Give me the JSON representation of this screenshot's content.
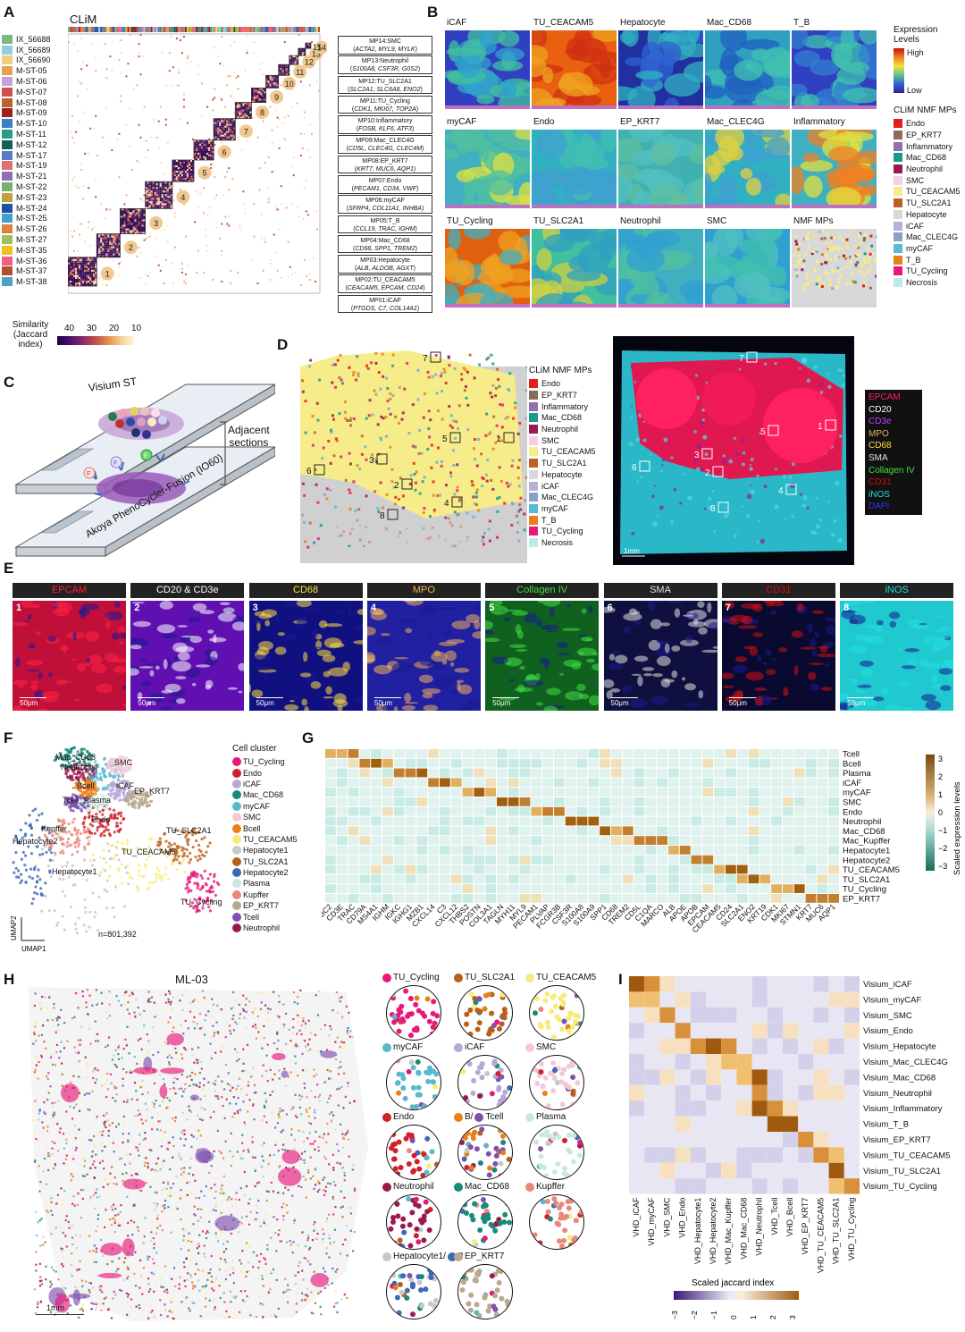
{
  "panels": {
    "A": "A",
    "B": "B",
    "C": "C",
    "D": "D",
    "E": "E",
    "F": "F",
    "G": "G",
    "H": "H",
    "I": "I"
  },
  "panelA": {
    "title": "CLiM",
    "samples": [
      {
        "name": "IX_56688",
        "color": "#7fb77e"
      },
      {
        "name": "IX_56689",
        "color": "#8ecfe0"
      },
      {
        "name": "IX_56690",
        "color": "#f0d080"
      },
      {
        "name": "M-ST-05",
        "color": "#e8a04a"
      },
      {
        "name": "M-ST-06",
        "color": "#c8a0d8"
      },
      {
        "name": "M-ST-07",
        "color": "#d05050"
      },
      {
        "name": "M-ST-08",
        "color": "#c06030"
      },
      {
        "name": "M-ST-09",
        "color": "#a02020"
      },
      {
        "name": "M-ST-10",
        "color": "#3a7fc0"
      },
      {
        "name": "M-ST-11",
        "color": "#2a9a8a"
      },
      {
        "name": "M-ST-12",
        "color": "#106050"
      },
      {
        "name": "M-ST-17",
        "color": "#5a7ac8"
      },
      {
        "name": "M-ST-19",
        "color": "#e07070"
      },
      {
        "name": "M-ST-21",
        "color": "#9070b0"
      },
      {
        "name": "M-ST-22",
        "color": "#78b070"
      },
      {
        "name": "M-ST-23",
        "color": "#c0a040"
      },
      {
        "name": "M-ST-24",
        "color": "#2050a0"
      },
      {
        "name": "M-ST-25",
        "color": "#40a0d0"
      },
      {
        "name": "M-ST-26",
        "color": "#e08040"
      },
      {
        "name": "M-ST-27",
        "color": "#a0c060"
      },
      {
        "name": "M-ST-35",
        "color": "#f0c020"
      },
      {
        "name": "M-ST-36",
        "color": "#f06080"
      },
      {
        "name": "M-ST-37",
        "color": "#b05030"
      },
      {
        "name": "M-ST-38",
        "color": "#50a0c0"
      }
    ],
    "modules": [
      "1",
      "2",
      "3",
      "4",
      "5",
      "6",
      "7",
      "8",
      "9",
      "10",
      "11",
      "12",
      "13",
      "14"
    ],
    "module_extra": "15",
    "similarity_label": "Similarity\n(Jaccard\nindex)",
    "similarity_ticks": [
      "40",
      "30",
      "20",
      "10"
    ],
    "mp_boxes": [
      {
        "title": "MP14:SMC",
        "genes": "ACTA2, MYL9, MYLK"
      },
      {
        "title": "MP13:Neutrophil",
        "genes": "S100A8, CSF3R, G0S2"
      },
      {
        "title": "MP12:TU_SLC2A1",
        "genes": "SLC2A1, SLC6A8, ENO2"
      },
      {
        "title": "MP11:TU_Cycling",
        "genes": "CDK1, MKI67, TOP2A"
      },
      {
        "title": "MP10:Inflammatory",
        "genes": "FOSB, KLF6, ATF3"
      },
      {
        "title": "MP09:Mac_CLEC4G",
        "genes": "CD5L, CLEC4G, CLEC4M"
      },
      {
        "title": "MP08:EP_KRT7",
        "genes": "KRT7, MUC6, AQP1"
      },
      {
        "title": "MP07:Endo",
        "genes": "PECAM1, CD34, VWF"
      },
      {
        "title": "MP06:myCAF",
        "genes": "SFRP4, COL11A1, INHBA"
      },
      {
        "title": "MP05:T_B",
        "genes": "CCL19, TRAC, IGHM"
      },
      {
        "title": "MP04:Mac_CD68",
        "genes": "CD68, SPP1, TREM2"
      },
      {
        "title": "MP03:Hepatocyte",
        "genes": "ALB, ALDOB, AGXT"
      },
      {
        "title": "MP02:TU_CEACAM5",
        "genes": "CEACAM5, EPCAM, CD24"
      },
      {
        "title": "MP01:iCAF",
        "genes": "PTGDS, C7, COL14A1"
      }
    ]
  },
  "panelB": {
    "tiles": [
      "iCAF",
      "TU_CEACAM5",
      "Hepatocyte",
      "Mac_CD68",
      "T_B",
      "myCAF",
      "Endo",
      "EP_KRT7",
      "Mac_CLEC4G",
      "Inflammatory",
      "TU_Cycling",
      "TU_SLC2A1",
      "Neutrophil",
      "SMC",
      "NMF MPs"
    ],
    "expr_title": "Expression\nLevels",
    "expr_high": "High",
    "expr_low": "Low",
    "nmf_title": "CLiM NMF MPs",
    "nmf_legend": [
      {
        "name": "Endo",
        "color": "#e0201a"
      },
      {
        "name": "EP_KRT7",
        "color": "#8a6a5a"
      },
      {
        "name": "Inflammatory",
        "color": "#9070b0"
      },
      {
        "name": "Mac_CD68",
        "color": "#1a9a8a"
      },
      {
        "name": "Neutrophil",
        "color": "#9a1a50"
      },
      {
        "name": "SMC",
        "color": "#f6cfe0"
      },
      {
        "name": "TU_CEACAM5",
        "color": "#f6ec8a"
      },
      {
        "name": "TU_SLC2A1",
        "color": "#c06020"
      },
      {
        "name": "Hepatocyte",
        "color": "#d8d8d8"
      },
      {
        "name": "iCAF",
        "color": "#b8b0d8"
      },
      {
        "name": "Mac_CLEC4G",
        "color": "#8aa0c8"
      },
      {
        "name": "myCAF",
        "color": "#5ab8d8"
      },
      {
        "name": "T_B",
        "color": "#e8801a"
      },
      {
        "name": "TU_Cycling",
        "color": "#e8187a"
      },
      {
        "name": "Necrosis",
        "color": "#bfe8e8"
      }
    ]
  },
  "panelC": {
    "top": "Visium ST",
    "bottom": "Akoya PhenoCycler-Fusion (IO60)",
    "adjacent": "Adjacent\nsections",
    "badges": [
      "F",
      "F",
      "F"
    ]
  },
  "panelD": {
    "legend_title": "CLiM NMF MPs",
    "legend": [
      {
        "name": "Endo",
        "color": "#e0201a"
      },
      {
        "name": "EP_KRT7",
        "color": "#8a6a5a"
      },
      {
        "name": "Inflammatory",
        "color": "#9070b0"
      },
      {
        "name": "Mac_CD68",
        "color": "#1a9a8a"
      },
      {
        "name": "Neutrophil",
        "color": "#9a1a50"
      },
      {
        "name": "SMC",
        "color": "#f6cfe0"
      },
      {
        "name": "TU_CEACAM5",
        "color": "#f6ec8a"
      },
      {
        "name": "TU_SLC2A1",
        "color": "#c06020"
      },
      {
        "name": "Hepatocyte",
        "color": "#d8d8d8"
      },
      {
        "name": "iCAF",
        "color": "#b8b0d8"
      },
      {
        "name": "Mac_CLEC4G",
        "color": "#8aa0c8"
      },
      {
        "name": "myCAF",
        "color": "#5ab8d8"
      },
      {
        "name": "T_B",
        "color": "#e8801a"
      },
      {
        "name": "TU_Cycling",
        "color": "#e8187a"
      },
      {
        "name": "Necrosis",
        "color": "#bfe8e8"
      }
    ],
    "roi_numbers": [
      "1",
      "2",
      "3",
      "4",
      "5",
      "6",
      "7",
      "8"
    ],
    "markers": [
      {
        "name": "EPCAM",
        "color": "#ff2060"
      },
      {
        "name": "CD20",
        "color": "#ffffff"
      },
      {
        "name": "CD3e",
        "color": "#c040ff"
      },
      {
        "name": "MPO",
        "color": "#f0b060"
      },
      {
        "name": "CD68",
        "color": "#ffe040"
      },
      {
        "name": "SMA",
        "color": "#e0e0e0"
      },
      {
        "name": "Collagen IV",
        "color": "#40e040"
      },
      {
        "name": "CD31",
        "color": "#d01010"
      },
      {
        "name": "iNOS",
        "color": "#20e0e0"
      },
      {
        "name": "DAPI",
        "color": "#3030ff"
      }
    ],
    "scale": "1mm"
  },
  "panelE": {
    "tiles": [
      {
        "label": "EPCAM",
        "num": "1",
        "color": "#ff2040",
        "bg": "#c0103a"
      },
      {
        "label": "CD20 & CD3e",
        "num": "2",
        "color": "#ffffff",
        "bg": "#6010b0"
      },
      {
        "label": "CD68",
        "num": "3",
        "color": "#ffe040",
        "bg": "#101080"
      },
      {
        "label": "MPO",
        "num": "4",
        "color": "#f0b060",
        "bg": "#2020a0"
      },
      {
        "label": "Collagen IV",
        "num": "5",
        "color": "#40e040",
        "bg": "#106020"
      },
      {
        "label": "SMA",
        "num": "6",
        "color": "#e0e0e0",
        "bg": "#101040"
      },
      {
        "label": "CD31",
        "num": "7",
        "color": "#d01010",
        "bg": "#0a0a30"
      },
      {
        "label": "iNOS",
        "num": "8",
        "color": "#20e0e0",
        "bg": "#20c8d0"
      }
    ],
    "scale": "50μm"
  },
  "panelF": {
    "title": "Cell cluster",
    "clusters": [
      {
        "name": "TU_Cycling",
        "color": "#e8187a"
      },
      {
        "name": "Endo",
        "color": "#d0202a"
      },
      {
        "name": "iCAF",
        "color": "#b8a8d8"
      },
      {
        "name": "Mac_CD68",
        "color": "#1a8a78"
      },
      {
        "name": "myCAF",
        "color": "#58b8d0"
      },
      {
        "name": "SMC",
        "color": "#f4c8d8"
      },
      {
        "name": "Bcell",
        "color": "#e8801a"
      },
      {
        "name": "TU_CEACAM5",
        "color": "#f6ec7a"
      },
      {
        "name": "Hepatocyte1",
        "color": "#c8c8c8"
      },
      {
        "name": "TU_SLC2A1",
        "color": "#b8601a"
      },
      {
        "name": "Hepatocyte2",
        "color": "#3a6ab8"
      },
      {
        "name": "Plasma",
        "color": "#c8e8e0"
      },
      {
        "name": "Kupffer",
        "color": "#e88878"
      },
      {
        "name": "EP_KRT7",
        "color": "#b8a890"
      },
      {
        "name": "Tcell",
        "color": "#8050b0"
      },
      {
        "name": "Neutrophil",
        "color": "#9a1a50"
      }
    ],
    "umap_labels": [
      "Mac_CD68",
      "Neutrophil",
      "SMC",
      "iCAF",
      "Bcell",
      "EP_KRT7",
      "Tcell",
      "Plasma",
      "Endo",
      "Kupffer",
      "TU_SLC2A1",
      "Hepatocyte2",
      "TU_CEACAM5",
      "Hepatocyte1",
      "TU_Cycling"
    ],
    "n": "n=801,392",
    "xlabel": "UMAP1",
    "ylabel": "UMAP2"
  },
  "panelG": {
    "rows": [
      "Tcell",
      "Bcell",
      "Plasma",
      "iCAF",
      "myCAF",
      "SMC",
      "Endo",
      "Neutrophil",
      "Mac_CD68",
      "Mac_Kupffer",
      "Hepatocyte1",
      "Hepatocyte2",
      "TU_CEACAM5",
      "TU_SLC2A1",
      "TU_Cycling",
      "EP_KRT7"
    ],
    "cols": [
      "TRBC2",
      "CD3E",
      "TRAC",
      "CD79A",
      "MS4A1",
      "IGHM",
      "IGKC",
      "IGHG1",
      "MZB1",
      "CXCL14",
      "C3",
      "CXCL12",
      "THBS2",
      "POSTN",
      "COL3A1",
      "TAGLN",
      "MYH11",
      "MYL9",
      "PECAM1",
      "PLVAP",
      "FCGR3B",
      "CSF3R",
      "S100A8",
      "S100A9",
      "SPP1",
      "CD68",
      "TREM2",
      "CD5L",
      "C1QA",
      "MARCO",
      "ALB",
      "APOE",
      "APOB",
      "EPCAM",
      "CEACAM5",
      "CD24",
      "SLC2A1",
      "ENO2",
      "KRT19",
      "CDK1",
      "MKI67",
      "STMN1",
      "KRT7",
      "MUC6",
      "AQP1"
    ],
    "legend_title": "Scaled expression levels",
    "legend_ticks": [
      "3",
      "2",
      "1",
      "0",
      "−1",
      "−2",
      "−3"
    ]
  },
  "panelH": {
    "title": "ML-03",
    "scale": "1mm",
    "circles": [
      {
        "label": "TU_Cycling",
        "colors": [
          "#e8187a"
        ]
      },
      {
        "label": "TU_SLC2A1",
        "colors": [
          "#b8601a"
        ]
      },
      {
        "label": "TU_CEACAM5",
        "colors": [
          "#f6ec7a"
        ]
      },
      {
        "label": "myCAF",
        "colors": [
          "#58b8d0"
        ]
      },
      {
        "label": "iCAF",
        "colors": [
          "#b8a8d8"
        ]
      },
      {
        "label": "SMC",
        "colors": [
          "#f4c8d8"
        ]
      },
      {
        "label": "Endo",
        "colors": [
          "#d0202a"
        ]
      },
      {
        "label": "B/",
        "colors": [
          "#e8801a",
          "#8050b0"
        ],
        "label2": "Tcell"
      },
      {
        "label": "Plasma",
        "colors": [
          "#c8e8e0"
        ]
      },
      {
        "label": "Neutrophil",
        "colors": [
          "#9a1a50"
        ]
      },
      {
        "label": "Mac_CD68",
        "colors": [
          "#1a8a78"
        ]
      },
      {
        "label": "Kupffer",
        "colors": [
          "#e88878"
        ]
      },
      {
        "label": "Hepatocyte1/",
        "colors": [
          "#c8c8c8",
          "#3a6ab8"
        ],
        "label2": "2"
      },
      {
        "label": "EP_KRT7",
        "colors": [
          "#b8a890"
        ]
      }
    ]
  },
  "panelI": {
    "rows": [
      "Visium_iCAF",
      "Visium_myCAF",
      "Visium_SMC",
      "Visium_Endo",
      "Visium_Hepatocyte",
      "Visium_Mac_CLEC4G",
      "Visium_Mac_CD68",
      "Visium_Neutrophil",
      "Visium_Inflammatory",
      "Visium_T_B",
      "Visium_EP_KRT7",
      "Visium_TU_CEACAM5",
      "Visium_TU_SLC2A1",
      "Visium_TU_Cycling"
    ],
    "cols": [
      "VHD_iCAF",
      "VHD_myCAF",
      "VHD_SMC",
      "VHD_Endo",
      "VHD_Hepatocyte1",
      "VHD_Hepatocyte2",
      "VHD_Mac_Kupffer",
      "VHD_Mac_CD68",
      "VHD_Neutrophil",
      "VHD_Tcell",
      "VHD_Bcell",
      "VHD_EP_KRT7",
      "VHD_TU_CEACAM5",
      "VHD_TU_SLC2A1",
      "VHD_TU_Cycling"
    ],
    "legend_title": "Scaled jaccard index",
    "legend_ticks": [
      "−3",
      "−2",
      "−1",
      "0",
      "1",
      "2",
      "3"
    ]
  }
}
